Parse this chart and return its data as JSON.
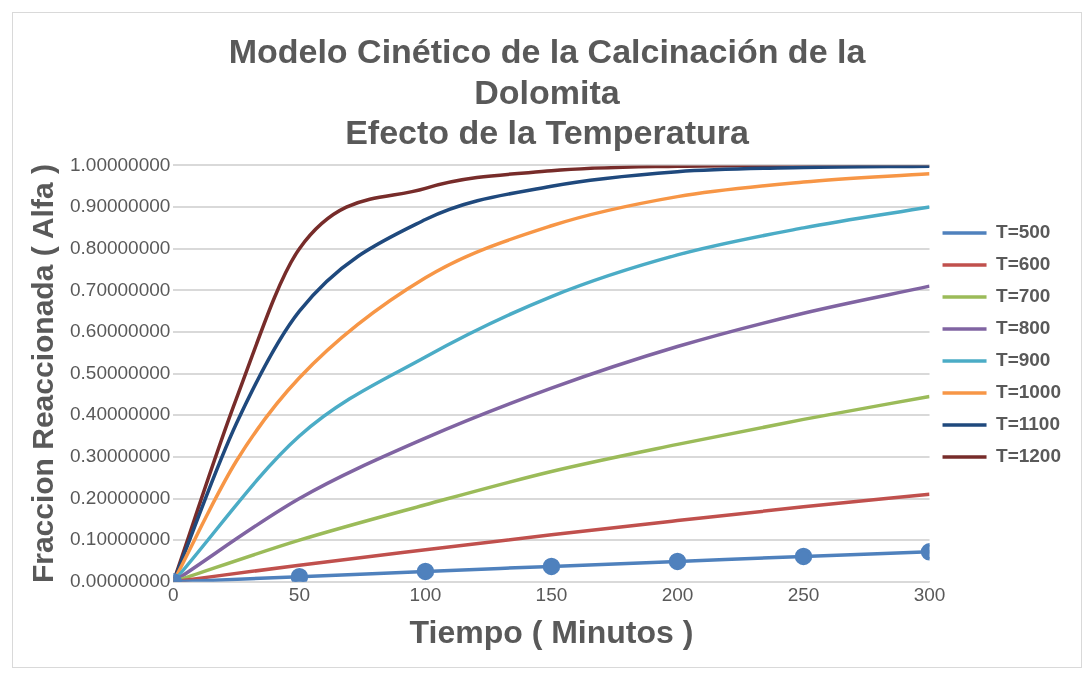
{
  "chart_data": {
    "type": "line",
    "title": "Modelo Cinético de la Calcinación de la Dolomita",
    "subtitle": "Efecto de la Temperatura",
    "xlabel": "Tiempo ( Minutos )",
    "ylabel": "Fraccion Reaccionada ( Alfa )",
    "x": [
      0,
      50,
      100,
      150,
      200,
      250,
      300
    ],
    "series": [
      {
        "name": "T=500",
        "color": "#4f81bd",
        "marker": "circle",
        "values": [
          0,
          0.012,
          0.025,
          0.037,
          0.049,
          0.061,
          0.072
        ]
      },
      {
        "name": "T=600",
        "color": "#c0504d",
        "values": [
          0,
          0.04,
          0.077,
          0.113,
          0.147,
          0.18,
          0.21
        ]
      },
      {
        "name": "T=700",
        "color": "#9bbb59",
        "values": [
          0,
          0.1,
          0.185,
          0.265,
          0.33,
          0.39,
          0.445
        ]
      },
      {
        "name": "T=800",
        "color": "#8064a2",
        "values": [
          0,
          0.2,
          0.345,
          0.465,
          0.565,
          0.645,
          0.71
        ]
      },
      {
        "name": "T=900",
        "color": "#4bacc6",
        "values": [
          0,
          0.35,
          0.54,
          0.685,
          0.785,
          0.85,
          0.9
        ]
      },
      {
        "name": "T=1000",
        "color": "#f79646",
        "x": [
          0,
          25,
          50,
          100,
          150,
          200,
          250,
          300
        ],
        "values": [
          0,
          0.29,
          0.49,
          0.73,
          0.855,
          0.925,
          0.96,
          0.98
        ]
      },
      {
        "name": "T=1100",
        "color": "#1f497d",
        "x": [
          0,
          25,
          50,
          100,
          150,
          200,
          250,
          300
        ],
        "values": [
          0,
          0.38,
          0.65,
          0.87,
          0.95,
          0.985,
          0.995,
          0.998
        ]
      },
      {
        "name": "T=1200",
        "color": "#772c2a",
        "x": [
          0,
          25,
          50,
          100,
          150,
          200,
          250,
          300
        ],
        "values": [
          0,
          0.44,
          0.8,
          0.945,
          0.987,
          0.998,
          1.0,
          1.0
        ]
      }
    ],
    "xlim": [
      0,
      300
    ],
    "xticks": [
      0,
      50,
      100,
      150,
      200,
      250,
      300
    ],
    "ylim": [
      0,
      1
    ],
    "yticks": [
      {
        "value": 0,
        "label": "0.00000000"
      },
      {
        "value": 0.1,
        "label": "0.10000000"
      },
      {
        "value": 0.2,
        "label": "0.20000000"
      },
      {
        "value": 0.3,
        "label": "0.30000000"
      },
      {
        "value": 0.4,
        "label": "0.40000000"
      },
      {
        "value": 0.5,
        "label": "0.50000000"
      },
      {
        "value": 0.6,
        "label": "0.60000000"
      },
      {
        "value": 0.7,
        "label": "0.70000000"
      },
      {
        "value": 0.8,
        "label": "0.80000000"
      },
      {
        "value": 0.9,
        "label": "0.90000000"
      },
      {
        "value": 1,
        "label": "1.00000000"
      }
    ],
    "grid": "y",
    "legend": "right",
    "marker": "none",
    "line_style": "solid"
  }
}
